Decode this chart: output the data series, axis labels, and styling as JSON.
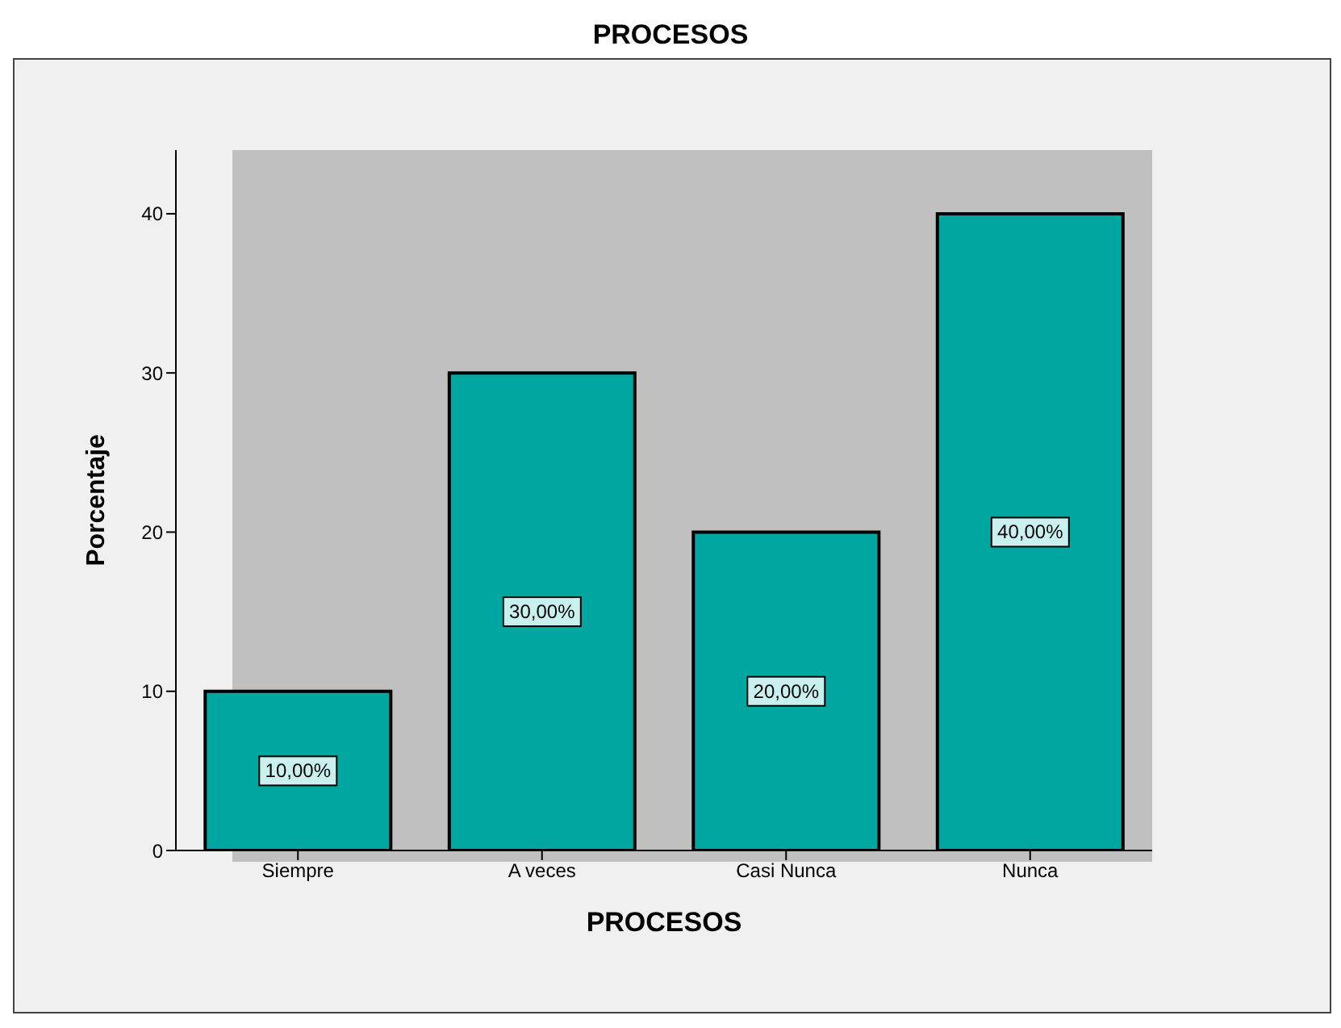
{
  "chart_data": {
    "type": "bar",
    "title": "PROCESOS",
    "xlabel": "PROCESOS",
    "ylabel": "Porcentaje",
    "categories": [
      "Siempre",
      "A veces",
      "Casi Nunca",
      "Nunca"
    ],
    "values": [
      10,
      30,
      20,
      40
    ],
    "value_labels": [
      "10,00%",
      "30,00%",
      "20,00%",
      "40,00%"
    ],
    "color": "#00a6a0",
    "ylim": [
      0,
      44
    ],
    "yticks": [
      0,
      10,
      20,
      30,
      40
    ],
    "grid": false,
    "legend": false
  }
}
